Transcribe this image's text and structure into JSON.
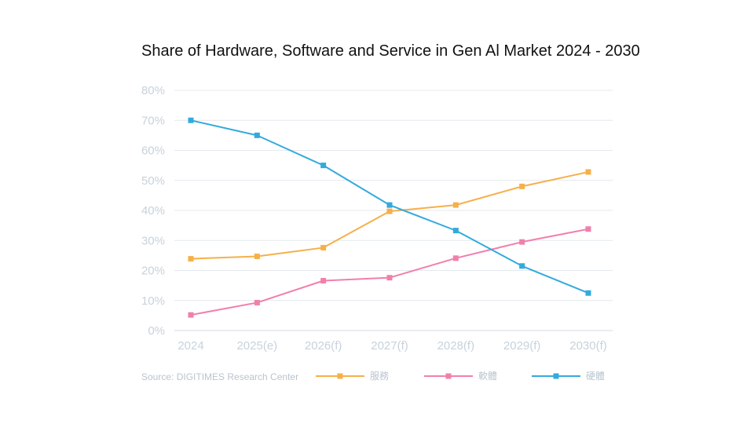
{
  "chart_data": {
    "type": "line",
    "title": "Share of Hardware, Software and Service in Gen Al Market 2024 - 2030",
    "categories": [
      "2024",
      "2025(e)",
      "2026(f)",
      "2027(f)",
      "2028(f)",
      "2029(f)",
      "2030(f)"
    ],
    "y_ticks": [
      "0%",
      "10%",
      "20%",
      "30%",
      "40%",
      "50%",
      "60%",
      "70%",
      "80%"
    ],
    "ylim": [
      0,
      80
    ],
    "grid": true,
    "series": [
      {
        "name": "服務",
        "color": "#f5b04a",
        "values": [
          23.9,
          24.7,
          27.6,
          39.7,
          41.8,
          48.0,
          52.8
        ]
      },
      {
        "name": "軟體",
        "color": "#f17fac",
        "values": [
          5.2,
          9.3,
          16.6,
          17.6,
          24.1,
          29.5,
          33.8
        ]
      },
      {
        "name": "硬體",
        "color": "#33aadd",
        "values": [
          70.0,
          65.0,
          55.0,
          41.8,
          33.3,
          21.5,
          12.5
        ]
      }
    ],
    "source": "Source: DIGITIMES Research Center",
    "legend_position": "bottom-right"
  }
}
